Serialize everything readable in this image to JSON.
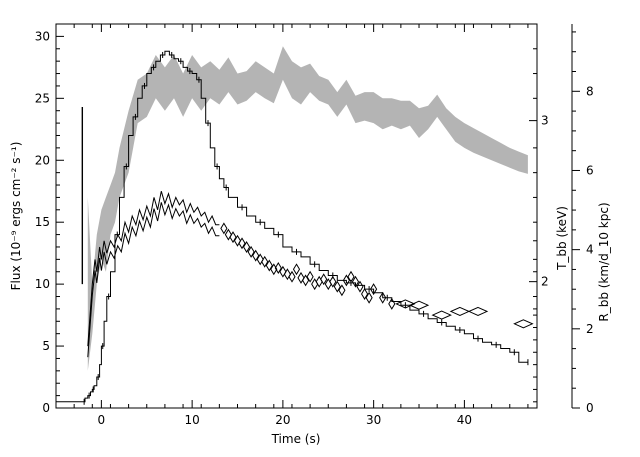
{
  "chart_data": {
    "type": "line",
    "xlabel": "Time (s)",
    "ylabel_left": "Flux (10⁻⁹ ergs cm⁻² s⁻¹)",
    "ylabel_right_inner": "T_bb (keV)",
    "ylabel_right_outer": "R_bb (km/d_10 kpc)",
    "xlim": [
      -5,
      48
    ],
    "ylim_left": [
      0,
      31
    ],
    "ylim_right_outer": [
      0,
      9.7
    ],
    "x_ticks": [
      0,
      10,
      20,
      30,
      40
    ],
    "x_tick_labels": [
      "0",
      "10",
      "20",
      "30",
      "40"
    ],
    "y_left_ticks": [
      0,
      5,
      10,
      15,
      20,
      25,
      30
    ],
    "y_left_tick_labels": [
      "0",
      "5",
      "10",
      "15",
      "20",
      "25",
      "30"
    ],
    "y_right_inner_ticks": [
      {
        "label": "2",
        "flux": 10.2
      },
      {
        "label": "3",
        "flux": 23.2
      }
    ],
    "y_right_outer_ticks": [
      0,
      2,
      4,
      6,
      8
    ],
    "y_right_outer_tick_labels": [
      "0",
      "2",
      "4",
      "6",
      "8"
    ],
    "series": [
      {
        "key": "flux",
        "style": "step",
        "color": "#000000",
        "x": [
          -5,
          -2,
          -1.8,
          -1.5,
          -1.2,
          -1,
          -0.8,
          -0.5,
          -0.2,
          0,
          0.3,
          0.6,
          1,
          1.5,
          2,
          2.5,
          3,
          3.5,
          4,
          4.5,
          5,
          5.5,
          6,
          6.5,
          7,
          7.5,
          8,
          8.5,
          9,
          9.5,
          10,
          10.5,
          11,
          11.5,
          12,
          12.5,
          13,
          13.5,
          14,
          15,
          16,
          17,
          18,
          19,
          20,
          21,
          22,
          23,
          24,
          25,
          26,
          27,
          28,
          29,
          30,
          31,
          32,
          33,
          34,
          35,
          36,
          37,
          38,
          39,
          40,
          41,
          42,
          43,
          44,
          45,
          46,
          47
        ],
        "y": [
          0.5,
          0.5,
          0.8,
          1.0,
          1.3,
          1.5,
          1.8,
          2.5,
          3.5,
          5,
          7,
          9,
          11,
          14,
          17,
          19.5,
          22,
          23.5,
          25,
          26,
          27,
          27.5,
          28,
          28.5,
          28.8,
          28.5,
          28.2,
          28.0,
          27.5,
          27.2,
          27,
          26.5,
          25,
          23,
          21,
          19.5,
          18.5,
          17.8,
          17,
          16.2,
          15.5,
          15,
          14.5,
          14,
          13,
          12.6,
          12.2,
          11.6,
          11.1,
          10.7,
          10.3,
          10.1,
          9.9,
          9.6,
          9.3,
          8.9,
          8.6,
          8.3,
          7.9,
          7.6,
          7.2,
          6.9,
          6.6,
          6.3,
          6.0,
          5.6,
          5.3,
          5.1,
          4.8,
          4.5,
          3.7,
          3.7
        ]
      },
      {
        "key": "temperature",
        "style": "line",
        "color": "#000000",
        "x": [
          -1.5,
          -1.2,
          -1,
          -0.7,
          -0.5,
          -0.2,
          0,
          0.3,
          0.6,
          1,
          1.4,
          1.8,
          2.2,
          2.6,
          3,
          3.4,
          3.8,
          4.2,
          4.6,
          5,
          5.4,
          5.8,
          6.2,
          6.6,
          7,
          7.4,
          7.8,
          8.2,
          8.6,
          9,
          9.4,
          9.8,
          10.2,
          10.6,
          11,
          11.4,
          11.8,
          12.2,
          12.6,
          13
        ],
        "y": [
          5,
          8,
          10,
          12,
          11,
          13,
          12,
          13.5,
          12.5,
          13.5,
          13,
          14,
          13.5,
          15,
          14.2,
          15.5,
          14.8,
          16,
          15.2,
          16.3,
          15.5,
          17,
          16,
          17.5,
          16.5,
          17.3,
          16.2,
          17,
          16.4,
          16.8,
          15.8,
          16.5,
          15.8,
          16.2,
          15.5,
          15.8,
          15,
          15.5,
          14.8,
          14.8
        ]
      },
      {
        "key": "temperature-diamonds",
        "style": "diamond",
        "color": "#000000",
        "x": [
          13.5,
          14,
          14.5,
          15,
          15.5,
          16,
          16.5,
          17,
          17.5,
          18,
          18.5,
          19,
          19.5,
          20,
          20.5,
          21,
          21.5,
          22,
          22.5,
          23,
          23.5,
          24,
          24.5,
          25,
          25.5,
          26,
          26.5,
          27,
          27.5,
          28,
          28.5,
          29,
          29.5,
          30,
          31,
          32,
          33.5,
          35,
          37.5,
          39.5,
          41.5,
          46.5
        ],
        "y": [
          14.5,
          14,
          13.8,
          13.5,
          13.3,
          13.0,
          12.6,
          12.3,
          12.0,
          11.8,
          11.5,
          11.2,
          11.3,
          11.0,
          10.8,
          10.6,
          11.2,
          10.5,
          10.3,
          10.6,
          10.0,
          10.2,
          10.4,
          10.0,
          10.2,
          9.8,
          9.5,
          10.3,
          10.6,
          10.2,
          9.8,
          9.2,
          8.9,
          9.6,
          8.9,
          8.4,
          8.4,
          8.3,
          7.5,
          7.8,
          7.8,
          6.8
        ]
      },
      {
        "key": "radius-band",
        "style": "band",
        "color": "#b4b4b4",
        "x": [
          -1.5,
          -1,
          -0.5,
          0,
          0.5,
          1,
          1.5,
          2,
          3,
          4,
          5,
          6,
          7,
          8,
          9,
          10,
          11,
          12,
          13,
          14,
          15,
          16,
          17,
          18,
          19,
          20,
          21,
          22,
          23,
          24,
          25,
          26,
          27,
          28,
          29,
          30,
          31,
          32,
          33,
          34,
          35,
          36,
          37,
          38,
          39,
          40,
          41,
          42,
          43,
          44,
          45,
          46,
          47
        ],
        "lower": [
          3,
          6,
          10,
          12,
          11,
          14,
          15,
          17,
          19,
          23,
          23.5,
          25,
          24,
          25,
          23.5,
          25,
          24,
          25,
          24.5,
          25.5,
          24.5,
          24.8,
          25.5,
          25,
          24.6,
          26.5,
          25,
          24.5,
          25.5,
          24.8,
          24.5,
          23.5,
          24.5,
          23,
          23.2,
          23,
          22.5,
          22.8,
          22.5,
          22.8,
          21.8,
          22.5,
          23.5,
          22.5,
          21.5,
          21.0,
          20.6,
          20.3,
          20.0,
          19.7,
          19.4,
          19.1,
          18.9
        ],
        "upper": [
          17,
          10,
          14,
          16,
          17,
          18,
          19,
          21,
          24,
          26.5,
          27,
          28.5,
          27.5,
          28.5,
          27,
          28.5,
          27.5,
          28,
          27.3,
          28.3,
          27,
          27.2,
          28,
          27.5,
          27,
          29.2,
          28,
          27.5,
          27.8,
          26.8,
          26.5,
          25.5,
          26.5,
          25.2,
          25.5,
          25.5,
          25,
          25.0,
          24.8,
          24.8,
          24.2,
          24.4,
          25.3,
          24.2,
          23.5,
          23.0,
          22.6,
          22.2,
          21.8,
          21.4,
          21.0,
          20.7,
          20.4
        ]
      }
    ],
    "grid": false,
    "legend": "none"
  }
}
